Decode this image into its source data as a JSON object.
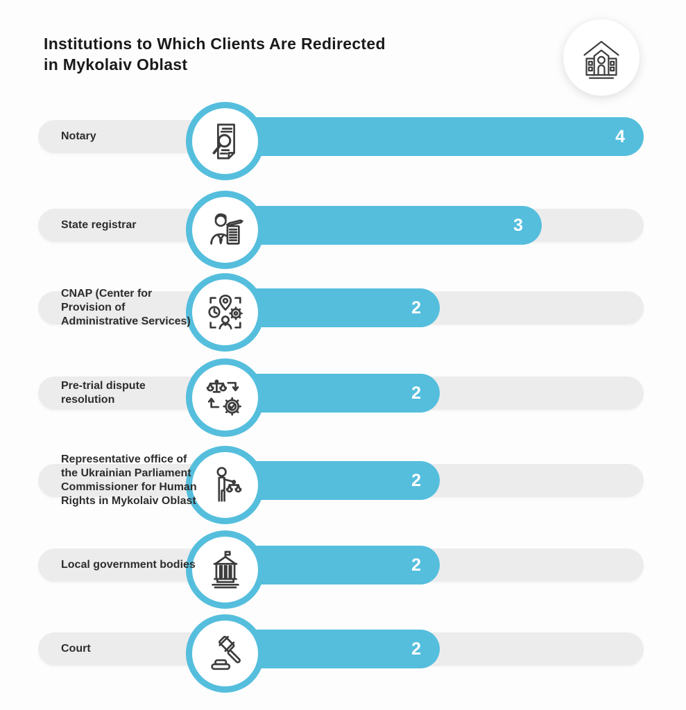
{
  "header": {
    "title_line1": "Institutions to Which Clients Are Redirected",
    "title_line2": "in Mykolaiv Oblast",
    "badge_icon": "institution-building-icon"
  },
  "chart_data": {
    "type": "bar",
    "orientation": "horizontal",
    "title": "Institutions to Which Clients Are Redirected in Mykolaiv Oblast",
    "categories": [
      "Notary",
      "State registrar",
      "CNAP (Center for Provision of Administrative Services)",
      "Pre-trial dispute resolution",
      "Representative office of the Ukrainian Parliament Commissioner for Human Rights in Mykolaiv Oblast",
      "Local government bodies",
      "Court"
    ],
    "values": [
      4,
      3,
      2,
      2,
      2,
      2,
      2
    ],
    "value_labels": [
      "4",
      "3",
      "2",
      "2",
      "2",
      "2",
      "2"
    ],
    "icons": [
      "document-magnifier-icon",
      "person-document-icon",
      "admin-services-icon",
      "dispute-process-icon",
      "person-with-scales-icon",
      "government-building-icon",
      "gavel-icon"
    ],
    "xlim": [
      0,
      4
    ],
    "grid": false,
    "legend": "none"
  },
  "colors": {
    "bar": "#55BEDD",
    "track": "#ECECEC",
    "value_text": "#FFFFFF",
    "label_text": "#2D2D2D",
    "title_text": "#1A1A1A",
    "icon_stroke": "#3C3C3C",
    "background": "#FDFDFD"
  }
}
